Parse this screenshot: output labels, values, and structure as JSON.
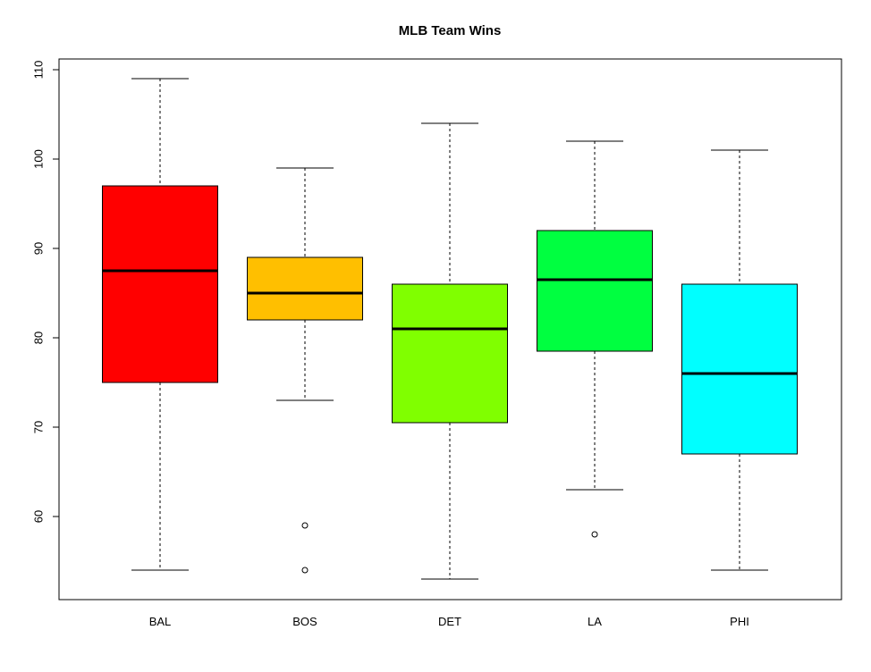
{
  "chart_data": {
    "type": "boxplot",
    "title": "MLB Team Wins",
    "xlabel": "",
    "ylabel": "",
    "ylim": [
      50,
      111
    ],
    "yticks": [
      60,
      70,
      80,
      90,
      100,
      110
    ],
    "categories": [
      "BAL",
      "BOS",
      "DET",
      "LA",
      "PHI"
    ],
    "boxes": [
      {
        "category": "BAL",
        "min": 54,
        "q1": 75,
        "median": 87.5,
        "q3": 97,
        "max": 109,
        "outliers": [],
        "color": "#ff0000"
      },
      {
        "category": "BOS",
        "min": 73,
        "q1": 82,
        "median": 85,
        "q3": 89,
        "max": 99,
        "outliers": [
          59,
          54
        ],
        "color": "#ffbf00"
      },
      {
        "category": "DET",
        "min": 53,
        "q1": 70.5,
        "median": 81,
        "q3": 86,
        "max": 104,
        "outliers": [],
        "color": "#80ff00"
      },
      {
        "category": "LA",
        "min": 63,
        "q1": 78.5,
        "median": 86.5,
        "q3": 92,
        "max": 102,
        "outliers": [
          58
        ],
        "color": "#00ff40"
      },
      {
        "category": "PHI",
        "min": 54,
        "q1": 67,
        "median": 76,
        "q3": 86,
        "max": 101,
        "outliers": [],
        "color": "#00ffff"
      }
    ],
    "grid": false,
    "legend": "none"
  }
}
